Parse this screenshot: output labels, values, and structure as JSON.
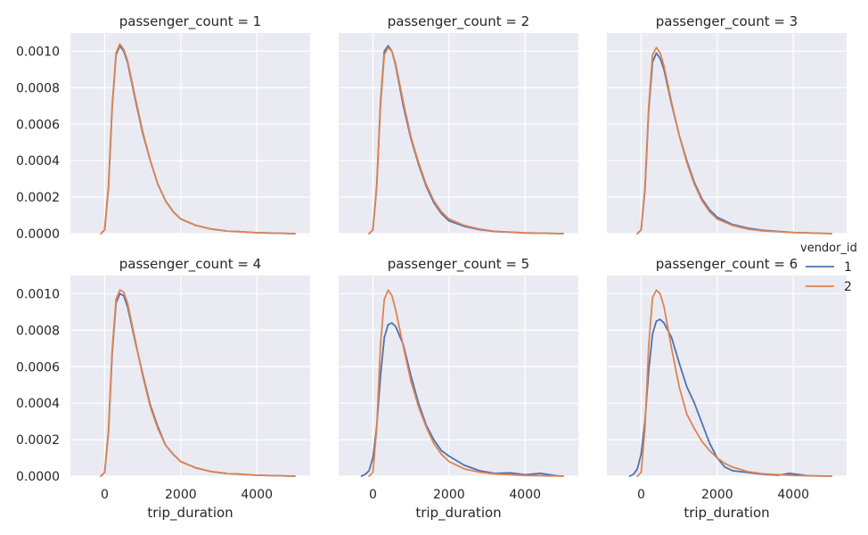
{
  "chart_data": {
    "type": "line",
    "facet_variable": "passenger_count",
    "xlabel": "trip_duration",
    "ylabel": "",
    "xlim": [
      -900,
      5400
    ],
    "ylim": [
      0,
      0.0011
    ],
    "x_ticks": [
      0,
      2000,
      4000
    ],
    "y_ticks": [
      0.0,
      0.0002,
      0.0004,
      0.0006,
      0.0008,
      0.001
    ],
    "x_tick_labels": [
      "0",
      "2000",
      "4000"
    ],
    "y_tick_labels": [
      "0.0000",
      "0.0002",
      "0.0004",
      "0.0006",
      "0.0008",
      "0.0010"
    ],
    "grid": true,
    "legend": {
      "title": "vendor_id",
      "placement": "right",
      "entries": [
        {
          "label": "1",
          "color": "#4c72b0"
        },
        {
          "label": "2",
          "color": "#dd8452"
        }
      ]
    },
    "panels": [
      {
        "title": "passenger_count = 1",
        "series": [
          {
            "name": "1",
            "color": "#4c72b0",
            "x": [
              -100,
              0,
              100,
              200,
              300,
              400,
              500,
              600,
              800,
              1000,
              1200,
              1400,
              1600,
              1800,
              2000,
              2400,
              2800,
              3200,
              4000,
              5000
            ],
            "y": [
              0.0,
              2e-05,
              0.00025,
              0.0007,
              0.00098,
              0.00103,
              0.001,
              0.00094,
              0.00074,
              0.00055,
              0.0004,
              0.00027,
              0.00018,
              0.00012,
              8e-05,
              4.5e-05,
              2.5e-05,
              1.5e-05,
              5e-06,
              0.0
            ]
          },
          {
            "name": "2",
            "color": "#dd8452",
            "x": [
              -100,
              0,
              100,
              200,
              300,
              400,
              500,
              600,
              800,
              1000,
              1200,
              1400,
              1600,
              1800,
              2000,
              2400,
              2800,
              3200,
              4000,
              5000
            ],
            "y": [
              0.0,
              2e-05,
              0.00026,
              0.00071,
              0.00099,
              0.00104,
              0.00101,
              0.00095,
              0.00075,
              0.00056,
              0.0004,
              0.00027,
              0.00018,
              0.00012,
              8e-05,
              4.5e-05,
              2.5e-05,
              1.5e-05,
              5e-06,
              0.0
            ]
          }
        ]
      },
      {
        "title": "passenger_count = 2",
        "series": [
          {
            "name": "1",
            "color": "#4c72b0",
            "x": [
              -100,
              0,
              100,
              200,
              300,
              400,
              500,
              600,
              800,
              1000,
              1200,
              1400,
              1600,
              1800,
              2000,
              2400,
              2800,
              3200,
              4000,
              5000
            ],
            "y": [
              0.0,
              2e-05,
              0.00026,
              0.00072,
              0.001,
              0.00103,
              0.001,
              0.00092,
              0.0007,
              0.00052,
              0.00038,
              0.00026,
              0.00017,
              0.00011,
              7e-05,
              4e-05,
              2.2e-05,
              1.2e-05,
              4e-06,
              0.0
            ]
          },
          {
            "name": "2",
            "color": "#dd8452",
            "x": [
              -100,
              0,
              100,
              200,
              300,
              400,
              500,
              600,
              800,
              1000,
              1200,
              1400,
              1600,
              1800,
              2000,
              2400,
              2800,
              3200,
              4000,
              5000
            ],
            "y": [
              0.0,
              2e-05,
              0.00025,
              0.0007,
              0.00098,
              0.00102,
              0.001,
              0.00093,
              0.00072,
              0.00053,
              0.00039,
              0.00027,
              0.00018,
              0.00012,
              8e-05,
              4.5e-05,
              2.5e-05,
              1.3e-05,
              4e-06,
              0.0
            ]
          }
        ]
      },
      {
        "title": "passenger_count = 3",
        "series": [
          {
            "name": "1",
            "color": "#4c72b0",
            "x": [
              -100,
              0,
              100,
              200,
              300,
              400,
              500,
              600,
              800,
              1000,
              1200,
              1400,
              1600,
              1800,
              2000,
              2400,
              2800,
              3200,
              4000,
              5000
            ],
            "y": [
              0.0,
              2e-05,
              0.00024,
              0.00068,
              0.00094,
              0.00099,
              0.00096,
              0.0009,
              0.00071,
              0.00054,
              0.0004,
              0.00028,
              0.00019,
              0.00013,
              9e-05,
              5e-05,
              3e-05,
              1.8e-05,
              6e-06,
              0.0
            ]
          },
          {
            "name": "2",
            "color": "#dd8452",
            "x": [
              -100,
              0,
              100,
              200,
              300,
              400,
              500,
              600,
              800,
              1000,
              1200,
              1400,
              1600,
              1800,
              2000,
              2400,
              2800,
              3200,
              4000,
              5000
            ],
            "y": [
              0.0,
              2e-05,
              0.00025,
              0.0007,
              0.00098,
              0.00102,
              0.00099,
              0.00092,
              0.00072,
              0.00054,
              0.00039,
              0.00027,
              0.00018,
              0.00012,
              8e-05,
              4.5e-05,
              2.5e-05,
              1.5e-05,
              6e-06,
              0.0
            ]
          }
        ]
      },
      {
        "title": "passenger_count = 4",
        "series": [
          {
            "name": "1",
            "color": "#4c72b0",
            "x": [
              -100,
              0,
              100,
              200,
              300,
              400,
              500,
              600,
              800,
              1000,
              1200,
              1400,
              1600,
              1800,
              2000,
              2400,
              2800,
              3200,
              4000,
              5000
            ],
            "y": [
              0.0,
              2e-05,
              0.00024,
              0.00068,
              0.00095,
              0.001,
              0.00099,
              0.00093,
              0.00074,
              0.00056,
              0.00039,
              0.00027,
              0.00017,
              0.00012,
              8e-05,
              4.5e-05,
              2.5e-05,
              1.5e-05,
              5e-06,
              0.0
            ]
          },
          {
            "name": "2",
            "color": "#dd8452",
            "x": [
              -100,
              0,
              100,
              200,
              300,
              400,
              500,
              600,
              800,
              1000,
              1200,
              1400,
              1600,
              1800,
              2000,
              2400,
              2800,
              3200,
              4000,
              5000
            ],
            "y": [
              0.0,
              2e-05,
              0.00025,
              0.0007,
              0.00097,
              0.00102,
              0.00101,
              0.00095,
              0.00075,
              0.00055,
              0.00038,
              0.00026,
              0.00017,
              0.00012,
              8e-05,
              4.5e-05,
              2.5e-05,
              1.5e-05,
              5e-06,
              0.0
            ]
          }
        ]
      },
      {
        "title": "passenger_count = 5",
        "series": [
          {
            "name": "1",
            "color": "#4c72b0",
            "x": [
              -300,
              -200,
              -100,
              0,
              100,
              200,
              300,
              400,
              500,
              600,
              800,
              1000,
              1200,
              1400,
              1600,
              1800,
              2000,
              2200,
              2400,
              2800,
              3200,
              3600,
              4000,
              4400,
              4800,
              5000
            ],
            "y": [
              0.0,
              1e-05,
              3e-05,
              0.0001,
              0.00027,
              0.00055,
              0.00076,
              0.00083,
              0.00084,
              0.00082,
              0.00072,
              0.00055,
              0.0004,
              0.00028,
              0.0002,
              0.00014,
              0.00011,
              8.5e-05,
              6e-05,
              3e-05,
              1.5e-05,
              1.8e-05,
              8e-06,
              1.5e-05,
              3e-06,
              0.0
            ]
          },
          {
            "name": "2",
            "color": "#dd8452",
            "x": [
              -100,
              0,
              100,
              200,
              300,
              400,
              500,
              600,
              800,
              1000,
              1200,
              1400,
              1600,
              1800,
              2000,
              2400,
              2800,
              3200,
              4000,
              5000
            ],
            "y": [
              0.0,
              2e-05,
              0.00026,
              0.00072,
              0.00097,
              0.00102,
              0.00099,
              0.00091,
              0.00071,
              0.00052,
              0.00038,
              0.00027,
              0.00018,
              0.00012,
              8e-05,
              4e-05,
              2.2e-05,
              1.2e-05,
              4e-06,
              0.0
            ]
          }
        ]
      },
      {
        "title": "passenger_count = 6",
        "series": [
          {
            "name": "1",
            "color": "#4c72b0",
            "x": [
              -300,
              -200,
              -100,
              0,
              100,
              200,
              300,
              400,
              500,
              600,
              800,
              1000,
              1200,
              1400,
              1600,
              1800,
              2000,
              2200,
              2400,
              2800,
              3200,
              3600,
              3900,
              4100,
              4400,
              5000
            ],
            "y": [
              0.0,
              1e-05,
              4e-05,
              0.00012,
              0.0003,
              0.00058,
              0.00078,
              0.00085,
              0.00086,
              0.00084,
              0.00076,
              0.00062,
              0.00049,
              0.0004,
              0.00029,
              0.00018,
              0.0001,
              5e-05,
              3e-05,
              2e-05,
              1e-05,
              5e-06,
              1.5e-05,
              1e-05,
              2e-06,
              0.0
            ]
          },
          {
            "name": "2",
            "color": "#dd8452",
            "x": [
              -100,
              0,
              100,
              200,
              300,
              400,
              500,
              600,
              800,
              1000,
              1200,
              1400,
              1600,
              1800,
              2000,
              2200,
              2400,
              2800,
              3200,
              4000,
              5000
            ],
            "y": [
              0.0,
              2e-05,
              0.00026,
              0.00072,
              0.00098,
              0.00102,
              0.001,
              0.00093,
              0.0007,
              0.00049,
              0.00034,
              0.00026,
              0.00019,
              0.00014,
              0.0001,
              7e-05,
              5e-05,
              2.5e-05,
              1.3e-05,
              4e-06,
              0.0
            ]
          }
        ]
      }
    ]
  }
}
